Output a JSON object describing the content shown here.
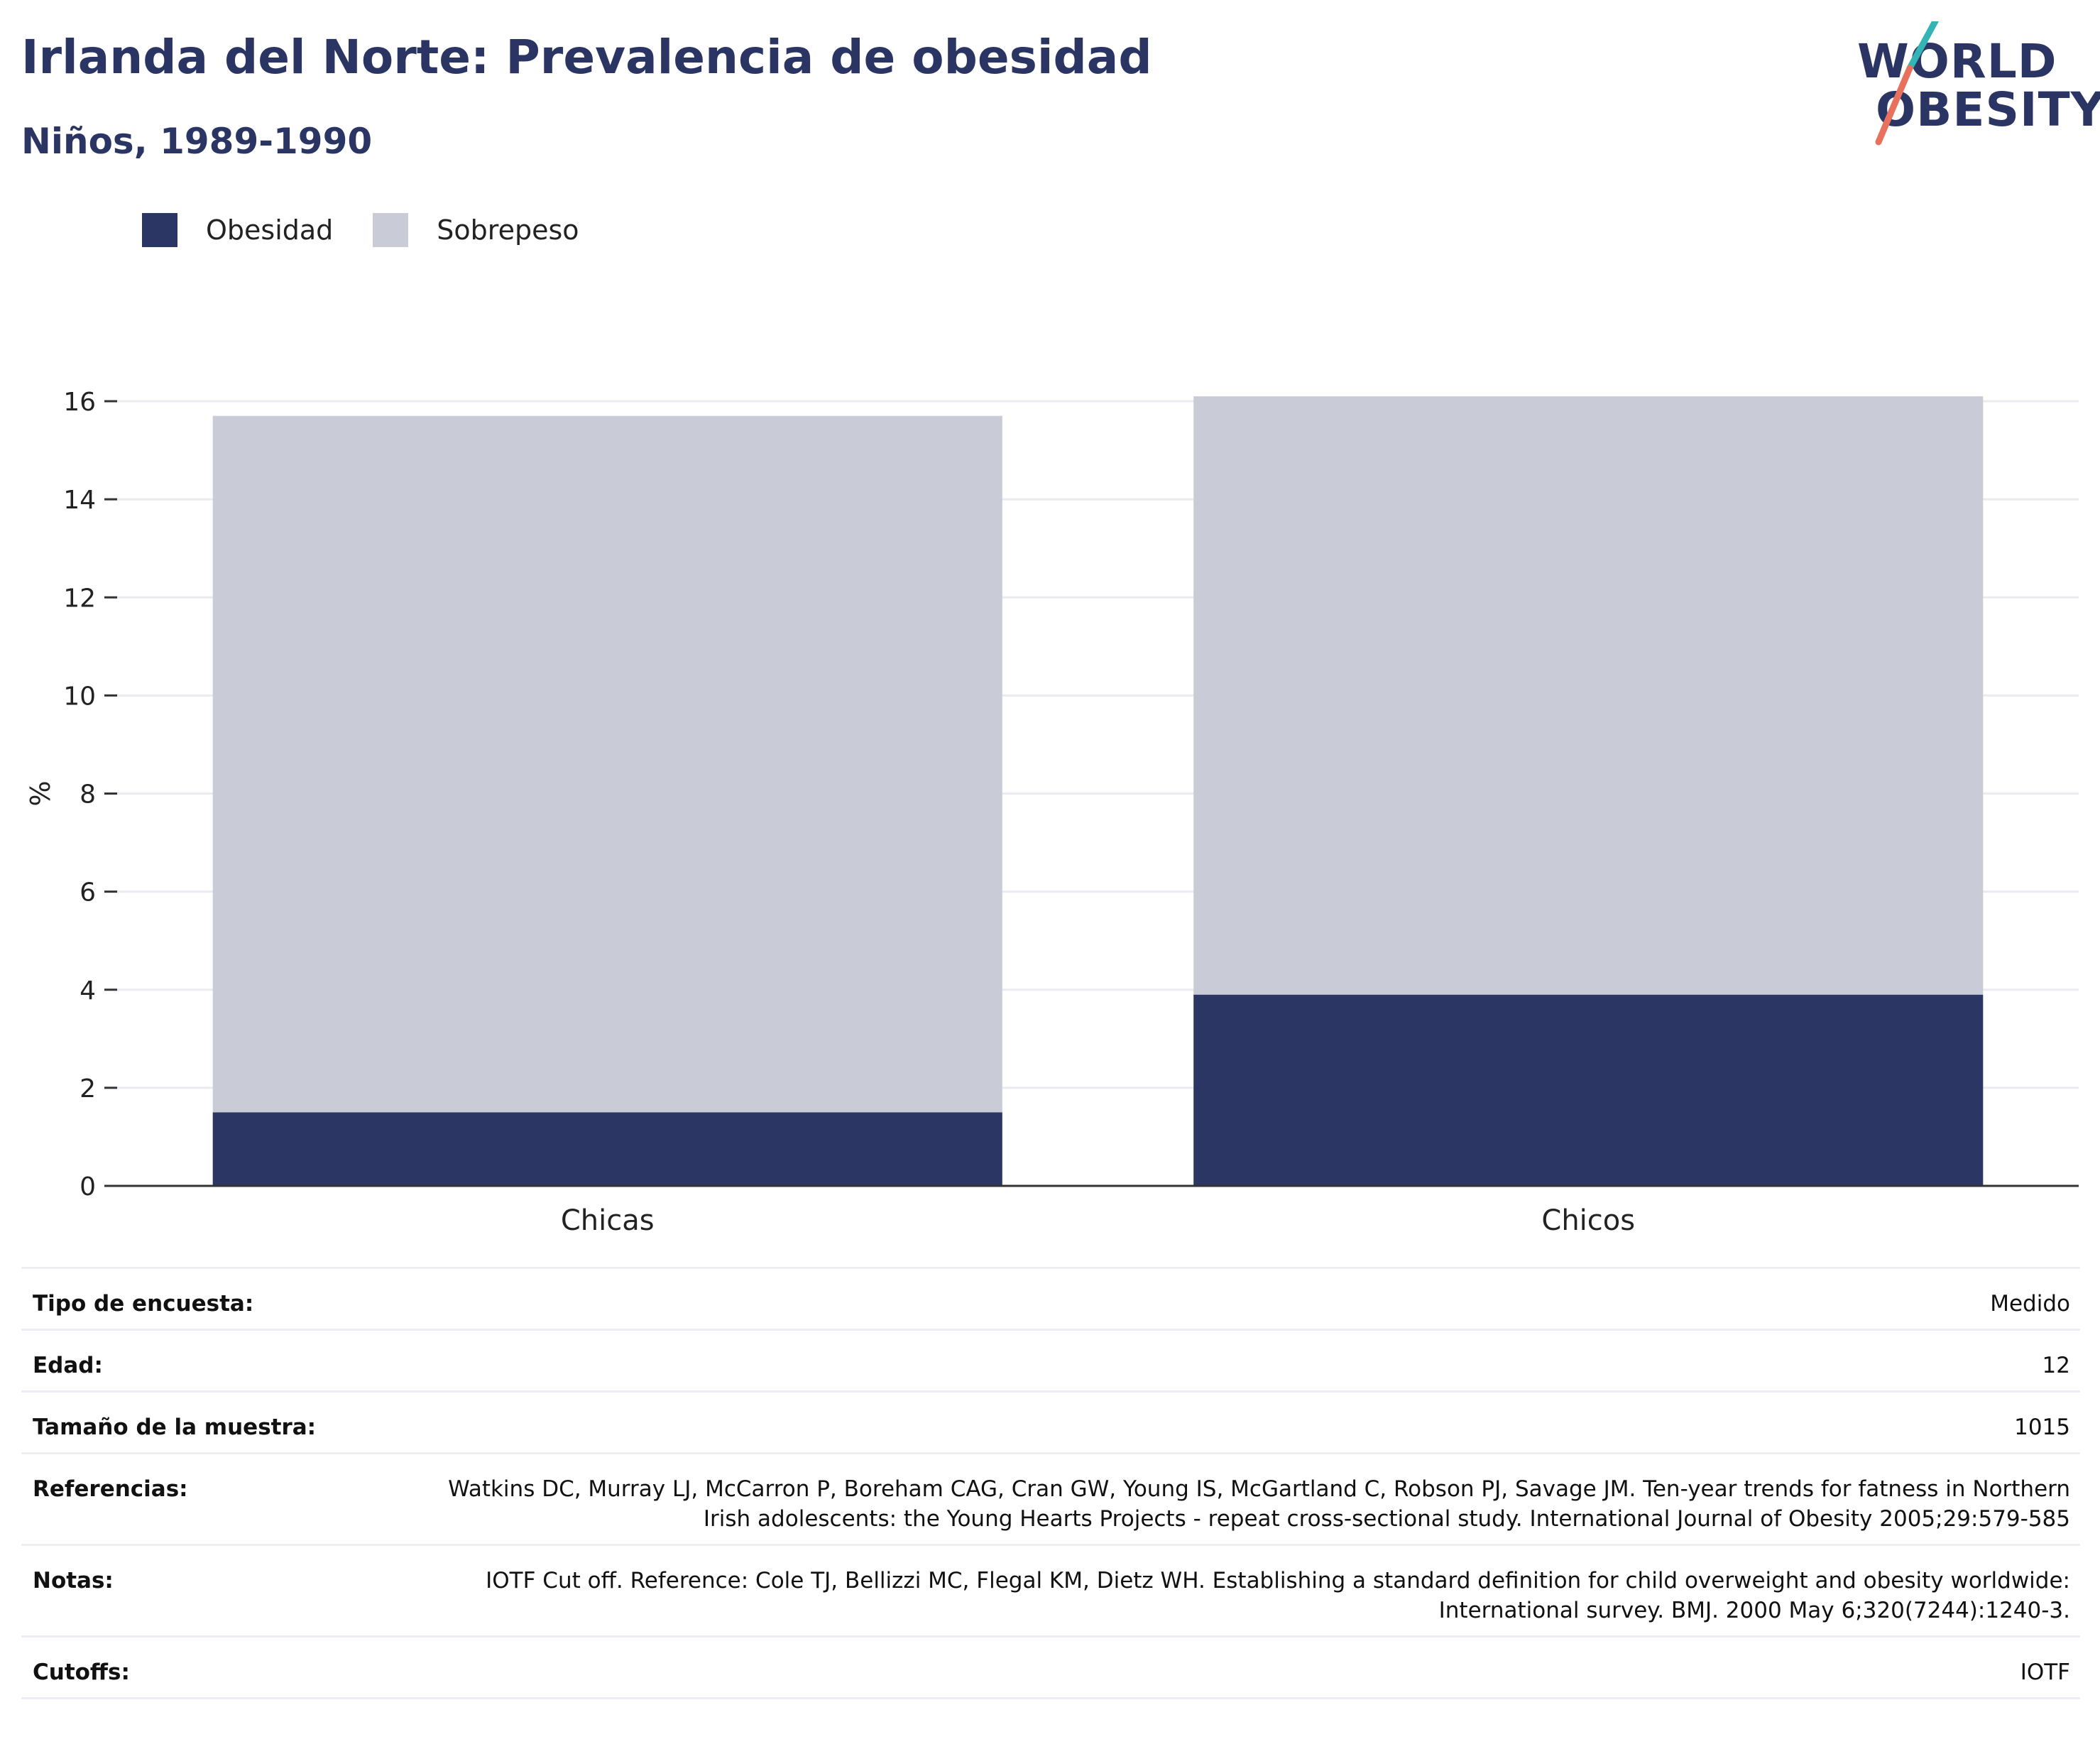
{
  "title": "Irlanda del Norte: Prevalencia de obesidad",
  "subtitle": "Niños, 1989-1990",
  "logo": {
    "line1": "WORLD",
    "line2": "OBESITY"
  },
  "colors": {
    "obesidad": "#2b3664",
    "sobrepeso": "#c9ccd7",
    "title": "#2b3564",
    "logo_teal": "#35b4b6",
    "logo_coral": "#e8705e"
  },
  "legend": [
    {
      "label": "Obesidad",
      "color": "#2b3664"
    },
    {
      "label": "Sobrepeso",
      "color": "#c9ccd7"
    }
  ],
  "chart_data": {
    "type": "bar",
    "stacked": true,
    "categories": [
      "Chicas",
      "Chicos"
    ],
    "series": [
      {
        "name": "Obesidad",
        "values": [
          1.5,
          3.9
        ]
      },
      {
        "name": "Sobrepeso",
        "values": [
          14.2,
          12.2
        ]
      }
    ],
    "ylabel": "%",
    "ylim": [
      0,
      16
    ],
    "yticks": [
      0,
      2,
      4,
      6,
      8,
      10,
      12,
      14,
      16
    ],
    "grid": true,
    "legend_position": "top-left"
  },
  "info": [
    {
      "label": "Tipo de encuesta:",
      "value": "Medido"
    },
    {
      "label": "Edad:",
      "value": "12"
    },
    {
      "label": "Tamaño de la muestra:",
      "value": "1015"
    },
    {
      "label": "Referencias:",
      "value": "Watkins DC, Murray LJ, McCarron P, Boreham CAG, Cran GW, Young IS, McGartland C, Robson PJ, Savage JM. Ten-year trends for fatness in Northern Irish adolescents: the Young Hearts Projects - repeat cross-sectional study. International Journal of Obesity 2005;29:579-585"
    },
    {
      "label": "Notas:",
      "value": "IOTF Cut off. Reference: Cole TJ, Bellizzi MC, Flegal KM, Dietz WH. Establishing a standard definition for child overweight and obesity worldwide: International survey. BMJ. 2000 May 6;320(7244):1240-3."
    },
    {
      "label": "Cutoffs:",
      "value": "IOTF"
    }
  ]
}
